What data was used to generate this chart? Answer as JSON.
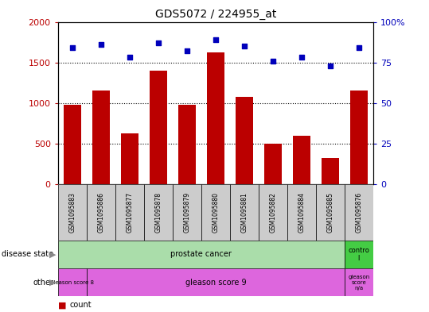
{
  "title": "GDS5072 / 224955_at",
  "samples": [
    "GSM1095883",
    "GSM1095886",
    "GSM1095877",
    "GSM1095878",
    "GSM1095879",
    "GSM1095880",
    "GSM1095881",
    "GSM1095882",
    "GSM1095884",
    "GSM1095885",
    "GSM1095876"
  ],
  "counts": [
    975,
    1155,
    625,
    1400,
    975,
    1625,
    1075,
    500,
    600,
    325,
    1155
  ],
  "percentile": [
    84,
    86,
    78,
    87,
    82,
    89,
    85,
    76,
    78,
    73,
    84
  ],
  "ylim_left": [
    0,
    2000
  ],
  "ylim_right": [
    0,
    100
  ],
  "yticks_left": [
    0,
    500,
    1000,
    1500,
    2000
  ],
  "yticks_right": [
    0,
    25,
    50,
    75,
    100
  ],
  "ytick_right_labels": [
    "0",
    "25",
    "50",
    "75",
    "100%"
  ],
  "bar_color": "#bb0000",
  "dot_color": "#0000bb",
  "bar_width": 0.6,
  "disease_color_main": "#aaddaa",
  "disease_color_control": "#44cc44",
  "other_color": "#dd66dd",
  "grid_color": "black",
  "tick_label_bg": "#cccccc",
  "fig_bg": "#ffffff"
}
